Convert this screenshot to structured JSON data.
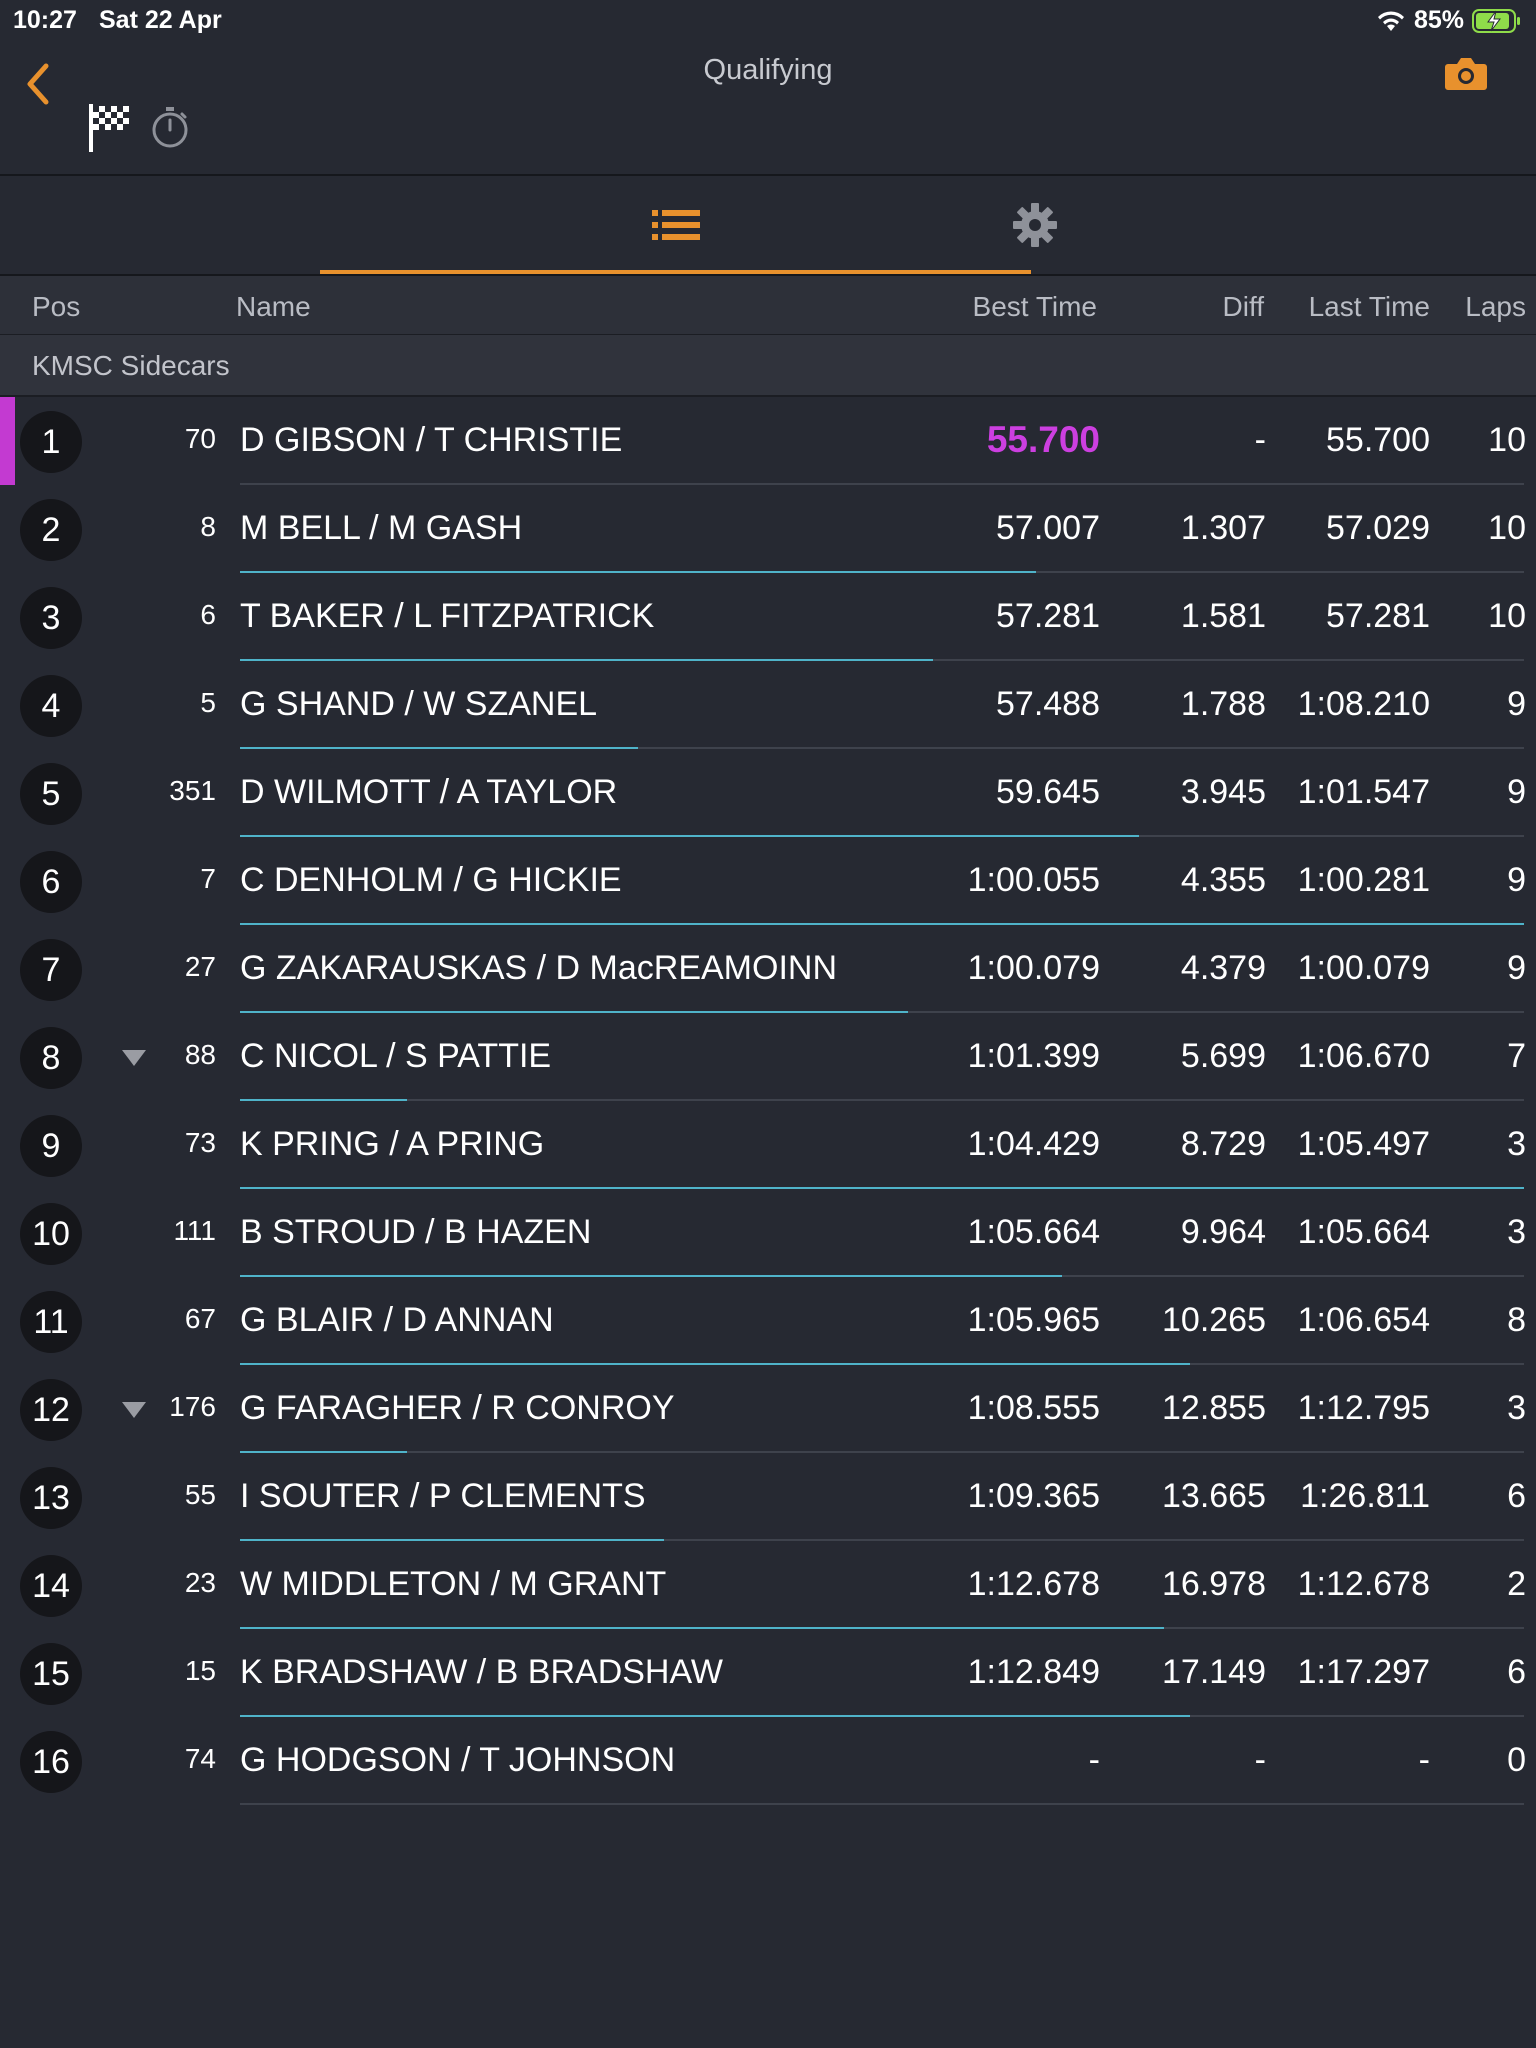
{
  "status": {
    "time": "10:27",
    "date": "Sat 22 Apr",
    "battery": "85%"
  },
  "header": {
    "title": "Qualifying"
  },
  "columns": {
    "pos": "Pos",
    "name": "Name",
    "best": "Best Time",
    "diff": "Diff",
    "last": "Last Time",
    "laps": "Laps"
  },
  "class_name": "KMSC Sidecars",
  "colors": {
    "accent": "#e8912d",
    "leader": "#c33ad1",
    "progress": "#4fb3c9",
    "background": "#262932"
  },
  "rows": [
    {
      "pos": "1",
      "num": "70",
      "name": "D GIBSON / T CHRISTIE",
      "best": "55.700",
      "diff": "-",
      "last": "55.700",
      "laps": "10",
      "progress": 0,
      "leader": true,
      "dropped": false
    },
    {
      "pos": "2",
      "num": "8",
      "name": "M BELL / M GASH",
      "best": "57.007",
      "diff": "1.307",
      "last": "57.029",
      "laps": "10",
      "progress": 0.62,
      "leader": false,
      "dropped": false
    },
    {
      "pos": "3",
      "num": "6",
      "name": "T BAKER / L FITZPATRICK",
      "best": "57.281",
      "diff": "1.581",
      "last": "57.281",
      "laps": "10",
      "progress": 0.54,
      "leader": false,
      "dropped": false
    },
    {
      "pos": "4",
      "num": "5",
      "name": "G SHAND / W SZANEL",
      "best": "57.488",
      "diff": "1.788",
      "last": "1:08.210",
      "laps": "9",
      "progress": 0.31,
      "leader": false,
      "dropped": false
    },
    {
      "pos": "5",
      "num": "351",
      "name": "D WILMOTT / A TAYLOR",
      "best": "59.645",
      "diff": "3.945",
      "last": "1:01.547",
      "laps": "9",
      "progress": 0.7,
      "leader": false,
      "dropped": false
    },
    {
      "pos": "6",
      "num": "7",
      "name": "C DENHOLM / G HICKIE",
      "best": "1:00.055",
      "diff": "4.355",
      "last": "1:00.281",
      "laps": "9",
      "progress": 1.0,
      "leader": false,
      "dropped": false
    },
    {
      "pos": "7",
      "num": "27",
      "name": "G ZAKARAUSKAS / D MacREAMOINN",
      "best": "1:00.079",
      "diff": "4.379",
      "last": "1:00.079",
      "laps": "9",
      "progress": 0.52,
      "leader": false,
      "dropped": false
    },
    {
      "pos": "8",
      "num": "88",
      "name": "C NICOL / S PATTIE",
      "best": "1:01.399",
      "diff": "5.699",
      "last": "1:06.670",
      "laps": "7",
      "progress": 0.13,
      "leader": false,
      "dropped": true
    },
    {
      "pos": "9",
      "num": "73",
      "name": "K PRING / A PRING",
      "best": "1:04.429",
      "diff": "8.729",
      "last": "1:05.497",
      "laps": "3",
      "progress": 1.0,
      "leader": false,
      "dropped": false
    },
    {
      "pos": "10",
      "num": "111",
      "name": "B STROUD / B HAZEN",
      "best": "1:05.664",
      "diff": "9.964",
      "last": "1:05.664",
      "laps": "3",
      "progress": 0.64,
      "leader": false,
      "dropped": false
    },
    {
      "pos": "11",
      "num": "67",
      "name": "G BLAIR / D ANNAN",
      "best": "1:05.965",
      "diff": "10.265",
      "last": "1:06.654",
      "laps": "8",
      "progress": 0.74,
      "leader": false,
      "dropped": false
    },
    {
      "pos": "12",
      "num": "176",
      "name": "G FARAGHER / R CONROY",
      "best": "1:08.555",
      "diff": "12.855",
      "last": "1:12.795",
      "laps": "3",
      "progress": 0.13,
      "leader": false,
      "dropped": true
    },
    {
      "pos": "13",
      "num": "55",
      "name": "I SOUTER / P CLEMENTS",
      "best": "1:09.365",
      "diff": "13.665",
      "last": "1:26.811",
      "laps": "6",
      "progress": 0.33,
      "leader": false,
      "dropped": false
    },
    {
      "pos": "14",
      "num": "23",
      "name": "W MIDDLETON / M GRANT",
      "best": "1:12.678",
      "diff": "16.978",
      "last": "1:12.678",
      "laps": "2",
      "progress": 0.72,
      "leader": false,
      "dropped": false
    },
    {
      "pos": "15",
      "num": "15",
      "name": "K BRADSHAW / B BRADSHAW",
      "best": "1:12.849",
      "diff": "17.149",
      "last": "1:17.297",
      "laps": "6",
      "progress": 0.74,
      "leader": false,
      "dropped": false
    },
    {
      "pos": "16",
      "num": "74",
      "name": "G HODGSON / T JOHNSON",
      "best": "-",
      "diff": "-",
      "last": "-",
      "laps": "0",
      "progress": 0,
      "leader": false,
      "dropped": false
    }
  ]
}
